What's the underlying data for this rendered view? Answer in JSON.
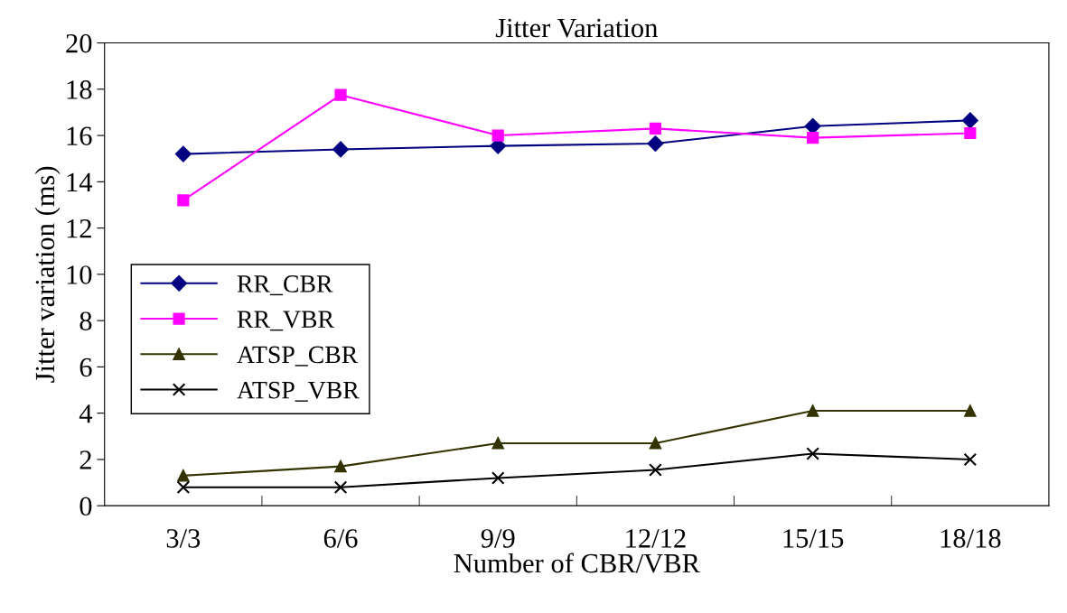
{
  "chart_data": {
    "type": "line",
    "title": "Jitter Variation",
    "xlabel": "Number of CBR/VBR",
    "ylabel": "Jitter variation (ms)",
    "categories": [
      "3/3",
      "6/6",
      "9/9",
      "12/12",
      "15/15",
      "18/18"
    ],
    "series": [
      {
        "name": "RR_CBR",
        "color": "#000080",
        "marker": "diamond",
        "values": [
          15.2,
          15.4,
          15.55,
          15.65,
          16.4,
          16.65
        ]
      },
      {
        "name": "RR_VBR",
        "color": "#ff00ff",
        "marker": "square",
        "values": [
          13.2,
          17.75,
          16.0,
          16.3,
          15.9,
          16.1
        ]
      },
      {
        "name": "ATSP_CBR",
        "color": "#333300",
        "marker": "triangle",
        "values": [
          1.3,
          1.7,
          2.7,
          2.7,
          4.1,
          4.1
        ]
      },
      {
        "name": "ATSP_VBR",
        "color": "#000000",
        "marker": "cross",
        "values": [
          0.8,
          0.8,
          1.2,
          1.55,
          2.25,
          2.0
        ]
      }
    ],
    "ylim": [
      0,
      20
    ],
    "yticks": [
      0,
      2,
      4,
      6,
      8,
      10,
      12,
      14,
      16,
      18,
      20
    ],
    "grid": false,
    "legend": "center left",
    "line_style": "solid"
  }
}
